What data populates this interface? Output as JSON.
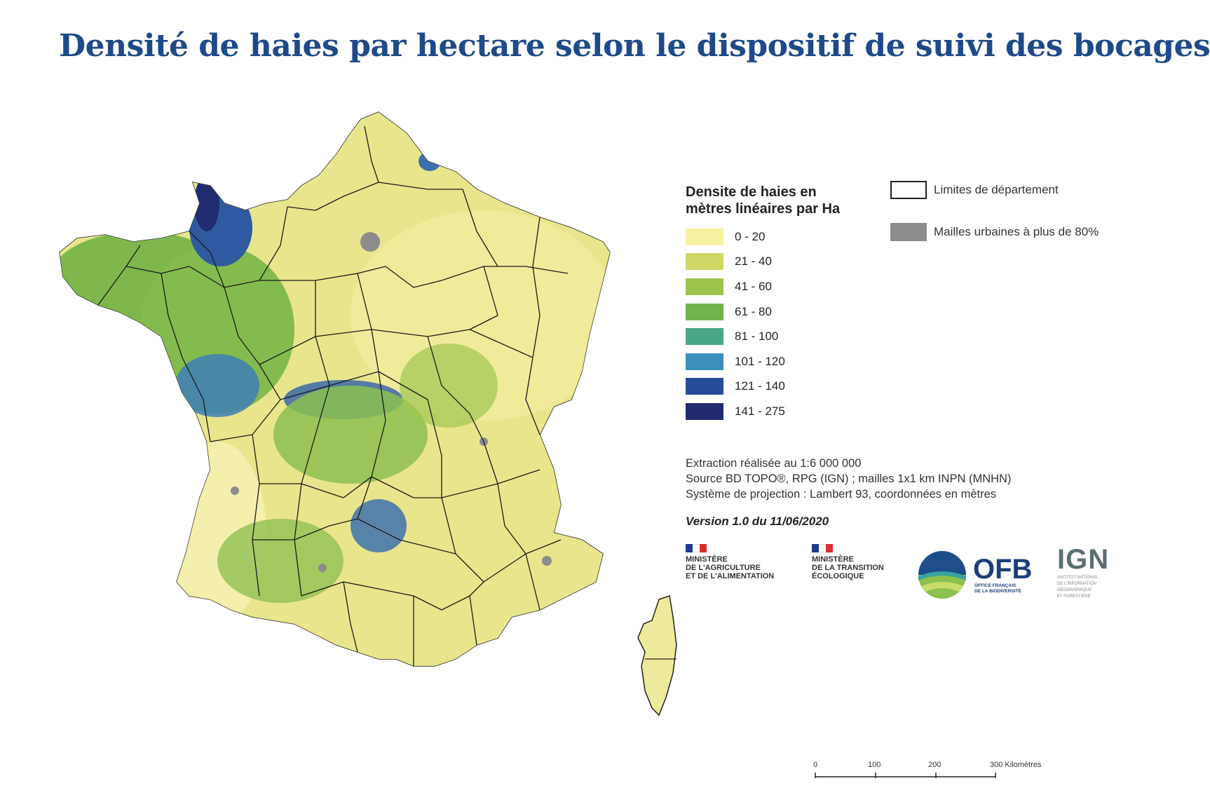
{
  "title": "Densité de haies par hectare selon le dispositif de suivi des bocages",
  "legend": {
    "title_line1": "Densite de haies en",
    "title_line2": "mètres linéaires par Ha",
    "classes": [
      {
        "label": "0 - 20",
        "color": "#f7f1a2"
      },
      {
        "label": "21 - 40",
        "color": "#cfd765"
      },
      {
        "label": "41 - 60",
        "color": "#9cc44d"
      },
      {
        "label": "61 - 80",
        "color": "#72b24a"
      },
      {
        "label": "81 - 100",
        "color": "#4aa689"
      },
      {
        "label": "101 - 120",
        "color": "#3a8fbd"
      },
      {
        "label": "121 - 140",
        "color": "#274c97"
      },
      {
        "label": "141 - 275",
        "color": "#202a6e"
      }
    ]
  },
  "aux_legend": {
    "boundaries_label": "Limites de département",
    "urban_label": "Mailles urbaines à plus de 80%",
    "urban_color": "#8c8c8c"
  },
  "notes": {
    "line1": "Extraction réalisée au 1:6 000 000",
    "line2": "Source BD TOPO®, RPG (IGN) ; mailles 1x1 km INPN (MNHN)",
    "line3": "Système de projection : Lambert 93, coordonnées en mètres"
  },
  "version": "Version 1.0 du 11/06/2020",
  "logos": {
    "ministry_agri": {
      "line1": "Ministère",
      "line2": "de l'Agriculture",
      "line3": "et de l'Alimentation"
    },
    "ministry_eco": {
      "line1": "Ministère",
      "line2": "de la Transition",
      "line3": "Écologique"
    },
    "ofb": {
      "name": "OFB",
      "sub1": "OFFICE FRANÇAIS",
      "sub2": "DE LA BIODIVERSITÉ"
    },
    "ign": {
      "name": "IGN",
      "sub1": "INSTITUT NATIONAL",
      "sub2": "DE L'INFORMATION",
      "sub3": "GÉOGRAPHIQUE",
      "sub4": "ET FORESTIÈRE"
    }
  },
  "scale": {
    "labels": [
      "0",
      "100",
      "200",
      "300 Kilomètres"
    ]
  }
}
